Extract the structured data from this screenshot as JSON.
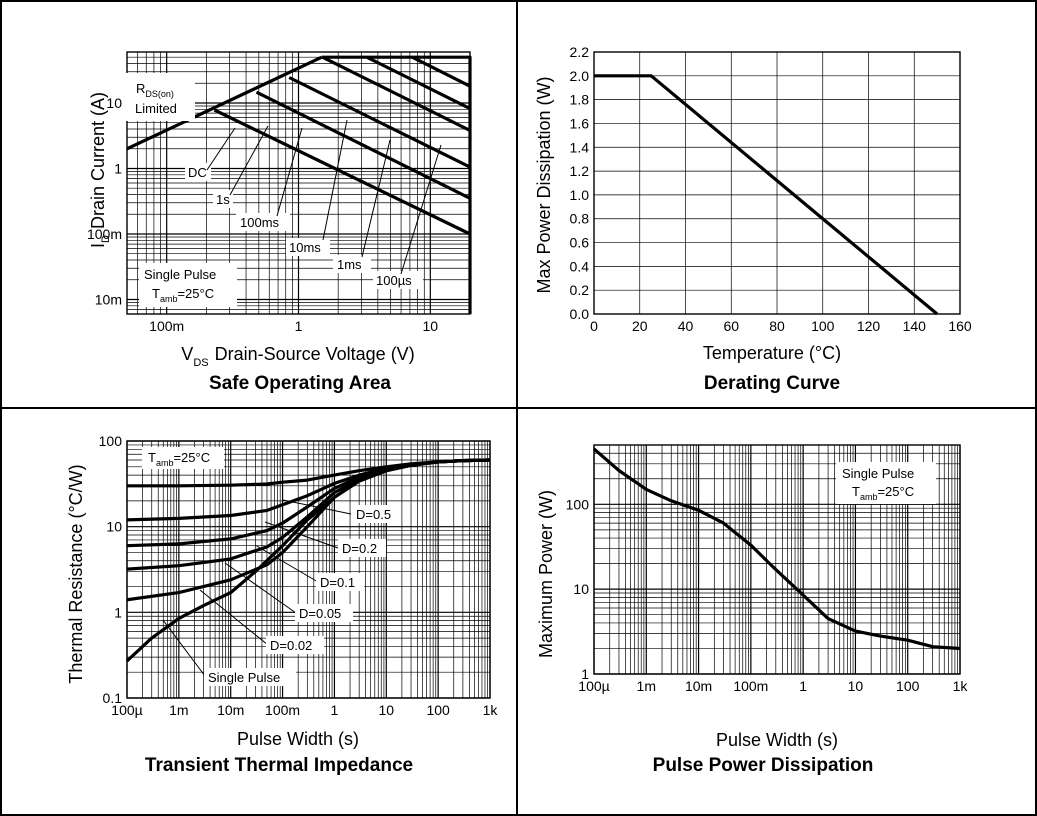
{
  "chart_data": [
    {
      "type": "line",
      "title": "Safe Operating Area",
      "xlabel": "Drain-Source Voltage (V)",
      "xlabel_sym": "V",
      "xlabel_sub": "DS",
      "ylabel": "Drain Current (A)",
      "ylabel_sym": "I",
      "ylabel_sub": "D",
      "xscale": "log",
      "yscale": "log",
      "xlim": [
        0.05,
        20
      ],
      "ylim": [
        0.006,
        60
      ],
      "grid": true,
      "x_ticks": [
        0.1,
        1,
        10
      ],
      "x_tick_labels": [
        "100m",
        "1",
        "10"
      ],
      "y_ticks": [
        0.01,
        0.1,
        1,
        10
      ],
      "y_tick_labels": [
        "10m",
        "100m",
        "1",
        "10"
      ],
      "series": [
        {
          "name": "RDS(on) Limited",
          "x": [
            0.05,
            1.5
          ],
          "y": [
            2,
            50
          ]
        },
        {
          "name": "DC",
          "x": [
            0.23,
            20
          ],
          "y": [
            7.8,
            0.1
          ]
        },
        {
          "name": "1s",
          "x": [
            0.48,
            20
          ],
          "y": [
            14.6,
            0.35
          ]
        },
        {
          "name": "100ms",
          "x": [
            0.85,
            20
          ],
          "y": [
            24.5,
            1.05
          ]
        },
        {
          "name": "10ms",
          "x": [
            1.52,
            20
          ],
          "y": [
            50,
            3.8
          ]
        },
        {
          "name": "1ms",
          "x": [
            3.3,
            20
          ],
          "y": [
            50,
            8.2
          ]
        },
        {
          "name": "100µs",
          "x": [
            7.3,
            20
          ],
          "y": [
            50,
            18
          ]
        },
        {
          "name": "limit",
          "x": [
            1.5,
            20,
            20
          ],
          "y": [
            50,
            50,
            0.006
          ]
        }
      ],
      "curve_labels": [
        {
          "text": "R",
          "sub": "DS(on)",
          "line2": "Limited"
        },
        {
          "text": "DC"
        },
        {
          "text": "1s"
        },
        {
          "text": "100ms"
        },
        {
          "text": "10ms"
        },
        {
          "text": "1ms"
        },
        {
          "text": "100µs"
        }
      ],
      "annotation": {
        "line1": "Single Pulse",
        "sym": "T",
        "sub": "amb",
        "rest": "=25°C"
      }
    },
    {
      "type": "line",
      "title": "Derating Curve",
      "xlabel": "Temperature (°C)",
      "ylabel": "Max Power Dissipation (W)",
      "xlim": [
        0,
        160
      ],
      "ylim": [
        0,
        2.2
      ],
      "grid": true,
      "x_ticks": [
        0,
        20,
        40,
        60,
        80,
        100,
        120,
        140,
        160
      ],
      "x_tick_labels": [
        "0",
        "20",
        "40",
        "60",
        "80",
        "100",
        "120",
        "140",
        "160"
      ],
      "y_ticks": [
        0,
        0.2,
        0.4,
        0.6,
        0.8,
        1.0,
        1.2,
        1.4,
        1.6,
        1.8,
        2.0,
        2.2
      ],
      "y_tick_labels": [
        "0.0",
        "0.2",
        "0.4",
        "0.6",
        "0.8",
        "1.0",
        "1.2",
        "1.4",
        "1.6",
        "1.8",
        "2.0",
        "2.2"
      ],
      "series": [
        {
          "x": [
            0,
            25,
            150
          ],
          "y": [
            2.0,
            2.0,
            0
          ]
        }
      ]
    },
    {
      "type": "line",
      "title": "Transient Thermal Impedance",
      "xlabel": "Pulse Width (s)",
      "ylabel": "Thermal Resistance (°C/W)",
      "xscale": "log",
      "yscale": "log",
      "xlim": [
        0.0001,
        1000
      ],
      "ylim": [
        0.1,
        100
      ],
      "grid": true,
      "x_ticks": [
        0.0001,
        0.001,
        0.01,
        0.1,
        1,
        10,
        100,
        1000
      ],
      "x_tick_labels": [
        "100µ",
        "1m",
        "10m",
        "100m",
        "1",
        "10",
        "100",
        "1k"
      ],
      "y_ticks": [
        0.1,
        1,
        10,
        100
      ],
      "y_tick_labels": [
        "0.1",
        "1",
        "10",
        "100"
      ],
      "series": [
        {
          "name": "D=0.5",
          "x": [
            0.0001,
            0.001,
            0.01,
            0.05,
            0.1,
            0.3,
            1,
            3,
            10,
            30,
            100,
            300,
            1000
          ],
          "y": [
            30,
            30,
            30.5,
            31.5,
            33,
            35,
            40,
            45,
            50,
            54,
            57,
            59,
            60
          ]
        },
        {
          "name": "D=0.2",
          "x": [
            0.0001,
            0.001,
            0.01,
            0.05,
            0.1,
            0.3,
            1,
            3,
            10,
            30,
            100,
            300,
            1000
          ],
          "y": [
            12,
            12.5,
            13.5,
            15.5,
            18,
            23,
            32,
            40,
            48,
            53,
            57,
            59,
            60
          ]
        },
        {
          "name": "D=0.1",
          "x": [
            0.0001,
            0.001,
            0.01,
            0.05,
            0.1,
            0.3,
            1,
            3,
            10,
            30,
            100,
            300,
            1000
          ],
          "y": [
            6,
            6.3,
            7.2,
            9,
            11,
            17,
            28,
            38,
            47,
            53,
            57,
            59,
            60
          ]
        },
        {
          "name": "D=0.05",
          "x": [
            0.0001,
            0.001,
            0.01,
            0.05,
            0.1,
            0.3,
            1,
            3,
            10,
            30,
            100,
            300,
            1000
          ],
          "y": [
            3.2,
            3.5,
            4.2,
            5.8,
            7.5,
            13,
            25,
            36,
            46,
            52,
            57,
            59,
            60
          ]
        },
        {
          "name": "D=0.02",
          "x": [
            0.0001,
            0.001,
            0.01,
            0.05,
            0.1,
            0.3,
            1,
            3,
            10,
            30,
            100,
            300,
            1000
          ],
          "y": [
            1.4,
            1.7,
            2.4,
            3.6,
            5,
            10,
            22,
            35,
            45,
            52,
            57,
            59,
            60
          ]
        },
        {
          "name": "Single Pulse",
          "x": [
            0.0001,
            0.0003,
            0.001,
            0.003,
            0.01,
            0.03,
            0.1,
            0.3,
            1,
            3,
            10,
            30,
            100,
            300,
            1000
          ],
          "y": [
            0.27,
            0.5,
            0.85,
            1.2,
            1.7,
            3,
            6,
            12,
            22,
            34,
            45,
            52,
            57,
            59,
            60
          ]
        }
      ],
      "curve_labels": [
        {
          "text": "D=0.5"
        },
        {
          "text": "D=0.2"
        },
        {
          "text": "D=0.1"
        },
        {
          "text": "D=0.05"
        },
        {
          "text": "D=0.02"
        },
        {
          "text": "Single Pulse"
        }
      ],
      "annotation": {
        "sym": "T",
        "sub": "amb",
        "rest": "=25°C"
      }
    },
    {
      "type": "line",
      "title": "Pulse Power Dissipation",
      "xlabel": "Pulse Width (s)",
      "ylabel": "Maximum Power (W)",
      "xscale": "log",
      "yscale": "log",
      "xlim": [
        0.0001,
        1000
      ],
      "ylim": [
        1,
        500
      ],
      "grid": true,
      "x_ticks": [
        0.0001,
        0.001,
        0.01,
        0.1,
        1,
        10,
        100,
        1000
      ],
      "x_tick_labels": [
        "100µ",
        "1m",
        "10m",
        "100m",
        "1",
        "10",
        "100",
        "1k"
      ],
      "y_ticks": [
        1,
        10,
        100
      ],
      "y_tick_labels": [
        "1",
        "10",
        "100"
      ],
      "series": [
        {
          "x": [
            0.0001,
            0.0003,
            0.001,
            0.003,
            0.01,
            0.03,
            0.1,
            0.3,
            1,
            3,
            10,
            30,
            100,
            300,
            1000
          ],
          "y": [
            450,
            250,
            150,
            110,
            85,
            60,
            33,
            17,
            8.5,
            4.5,
            3.2,
            2.8,
            2.5,
            2.1,
            2.0
          ]
        }
      ],
      "annotation": {
        "line1": "Single Pulse",
        "sym": "T",
        "sub": "amb",
        "rest": "=25°C"
      }
    }
  ]
}
